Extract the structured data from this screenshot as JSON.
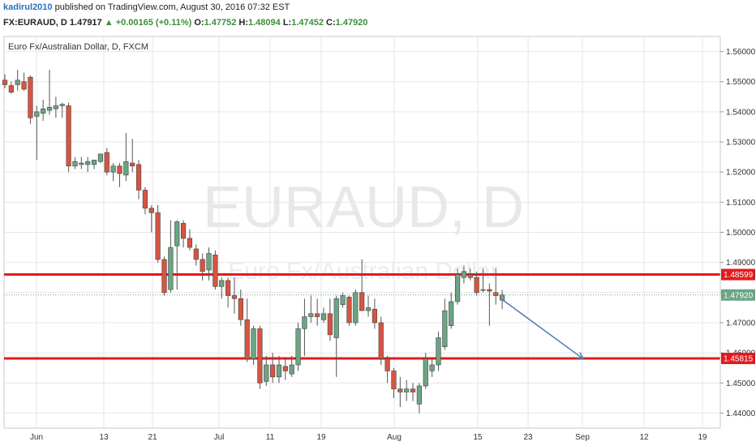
{
  "header": {
    "user": "kadirul2010",
    "published": "published on TradingView.com, August 30, 2016 07:32 EST",
    "symbol": "FX:EURAUD, D",
    "last": "1.47917",
    "arrow": "▲",
    "change": "+0.00165 (+0.11%)",
    "o_label": "O:",
    "o": "1.47752",
    "h_label": "H:",
    "h": "1.48094",
    "l_label": "L:",
    "l": "1.47452",
    "c_label": "C:",
    "c": "1.47920"
  },
  "watermark": {
    "main": "EURAUD, D",
    "sub": "Euro Fx/Australian Dollar"
  },
  "colors": {
    "up": "#6ba583",
    "down": "#d75442",
    "line": "#e31a1c",
    "arrow": "#4a7ab5",
    "grid": "#e6e6e6"
  },
  "chart_data": {
    "type": "candlestick",
    "title": "Euro Fx/Australian Dollar, D, FXCM",
    "ylim": [
      1.435,
      1.565
    ],
    "y_ticks": [
      "1.56000",
      "1.55000",
      "1.54000",
      "1.53000",
      "1.52000",
      "1.51000",
      "1.50000",
      "1.49000",
      "1.48000",
      "1.47000",
      "1.46000",
      "1.45000",
      "1.44000"
    ],
    "x_ticks": [
      "Jun",
      "13",
      "21",
      "Jul",
      "11",
      "19",
      "Aug",
      "15",
      "23",
      "Sep",
      "12",
      "19"
    ],
    "candles": [
      [
        1.5505,
        1.5525,
        1.5478,
        1.549
      ],
      [
        1.5487,
        1.55,
        1.546,
        1.5465
      ],
      [
        1.549,
        1.554,
        1.547,
        1.5505
      ],
      [
        1.55,
        1.553,
        1.547,
        1.5475
      ],
      [
        1.5515,
        1.552,
        1.536,
        1.538
      ],
      [
        1.5385,
        1.542,
        1.524,
        1.54
      ],
      [
        1.5395,
        1.544,
        1.537,
        1.541
      ],
      [
        1.5405,
        1.554,
        1.539,
        1.5415
      ],
      [
        1.541,
        1.545,
        1.538,
        1.542
      ],
      [
        1.542,
        1.543,
        1.538,
        1.5425
      ],
      [
        1.542,
        1.543,
        1.52,
        1.522
      ],
      [
        1.522,
        1.525,
        1.521,
        1.5235
      ],
      [
        1.5225,
        1.525,
        1.521,
        1.523
      ],
      [
        1.5225,
        1.525,
        1.52,
        1.5235
      ],
      [
        1.5225,
        1.524,
        1.521,
        1.524
      ],
      [
        1.5235,
        1.526,
        1.523,
        1.526
      ],
      [
        1.5265,
        1.528,
        1.519,
        1.52
      ],
      [
        1.52,
        1.523,
        1.517,
        1.522
      ],
      [
        1.522,
        1.523,
        1.515,
        1.5195
      ],
      [
        1.519,
        1.533,
        1.517,
        1.5235
      ],
      [
        1.523,
        1.531,
        1.52,
        1.522
      ],
      [
        1.5225,
        1.524,
        1.511,
        1.514
      ],
      [
        1.514,
        1.515,
        1.506,
        1.508
      ],
      [
        1.508,
        1.509,
        1.5,
        1.5065
      ],
      [
        1.5065,
        1.509,
        1.49,
        1.491
      ],
      [
        1.491,
        1.492,
        1.479,
        1.48
      ],
      [
        1.481,
        1.504,
        1.48,
        1.495
      ],
      [
        1.4955,
        1.504,
        1.481,
        1.5035
      ],
      [
        1.503,
        1.504,
        1.495,
        1.498
      ],
      [
        1.498,
        1.501,
        1.494,
        1.495
      ],
      [
        1.4945,
        1.496,
        1.489,
        1.491
      ],
      [
        1.491,
        1.493,
        1.484,
        1.487
      ],
      [
        1.4875,
        1.495,
        1.484,
        1.493
      ],
      [
        1.4925,
        1.494,
        1.481,
        1.482
      ],
      [
        1.482,
        1.485,
        1.478,
        1.484
      ],
      [
        1.484,
        1.485,
        1.475,
        1.479
      ],
      [
        1.479,
        1.485,
        1.473,
        1.478
      ],
      [
        1.478,
        1.481,
        1.469,
        1.471
      ],
      [
        1.471,
        1.478,
        1.457,
        1.458
      ],
      [
        1.458,
        1.469,
        1.456,
        1.468
      ],
      [
        1.468,
        1.469,
        1.448,
        1.45
      ],
      [
        1.4505,
        1.459,
        1.449,
        1.456
      ],
      [
        1.456,
        1.46,
        1.45,
        1.452
      ],
      [
        1.452,
        1.459,
        1.45,
        1.456
      ],
      [
        1.4555,
        1.458,
        1.451,
        1.454
      ],
      [
        1.453,
        1.459,
        1.452,
        1.456
      ],
      [
        1.456,
        1.47,
        1.454,
        1.468
      ],
      [
        1.468,
        1.478,
        1.459,
        1.472
      ],
      [
        1.472,
        1.479,
        1.47,
        1.473
      ],
      [
        1.473,
        1.478,
        1.469,
        1.472
      ],
      [
        1.471,
        1.475,
        1.47,
        1.473
      ],
      [
        1.473,
        1.478,
        1.464,
        1.466
      ],
      [
        1.465,
        1.479,
        1.452,
        1.478
      ],
      [
        1.476,
        1.48,
        1.475,
        1.479
      ],
      [
        1.4785,
        1.479,
        1.469,
        1.47
      ],
      [
        1.47,
        1.481,
        1.469,
        1.48
      ],
      [
        1.48,
        1.491,
        1.475,
        1.474
      ],
      [
        1.474,
        1.479,
        1.472,
        1.475
      ],
      [
        1.4745,
        1.478,
        1.468,
        1.47
      ],
      [
        1.47,
        1.472,
        1.456,
        1.458
      ],
      [
        1.458,
        1.459,
        1.45,
        1.454
      ],
      [
        1.454,
        1.455,
        1.445,
        1.448
      ],
      [
        1.448,
        1.452,
        1.442,
        1.447
      ],
      [
        1.447,
        1.451,
        1.444,
        1.448
      ],
      [
        1.448,
        1.45,
        1.444,
        1.447
      ],
      [
        1.443,
        1.45,
        1.44,
        1.449
      ],
      [
        1.449,
        1.46,
        1.448,
        1.458
      ],
      [
        1.454,
        1.458,
        1.452,
        1.456
      ],
      [
        1.456,
        1.467,
        1.454,
        1.465
      ],
      [
        1.462,
        1.478,
        1.461,
        1.474
      ],
      [
        1.469,
        1.48,
        1.468,
        1.477
      ],
      [
        1.477,
        1.488,
        1.476,
        1.486
      ],
      [
        1.485,
        1.489,
        1.483,
        1.487
      ],
      [
        1.486,
        1.488,
        1.484,
        1.485
      ],
      [
        1.485,
        1.487,
        1.479,
        1.48
      ],
      [
        1.481,
        1.488,
        1.48,
        1.481
      ],
      [
        1.481,
        1.483,
        1.469,
        1.4805
      ],
      [
        1.48,
        1.488,
        1.476,
        1.479
      ],
      [
        1.4775,
        1.4809,
        1.4745,
        1.4792
      ]
    ],
    "levels": [
      {
        "value": 1.48599,
        "label": "1.48599"
      },
      {
        "value": 1.45815,
        "label": "1.45815"
      }
    ],
    "last_price": {
      "value": 1.4792,
      "label": "1.47920"
    },
    "forecast_arrow": {
      "from": 1.4775,
      "to": 1.458
    }
  }
}
